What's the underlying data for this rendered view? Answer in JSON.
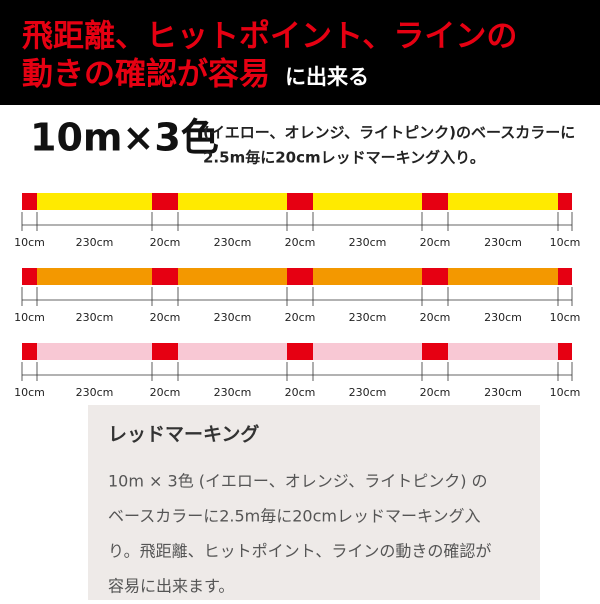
{
  "header": {
    "line1": "飛距離、ヒットポイント、ラインの",
    "line2_red": "動きの確認が容易",
    "line2_white": "に出来る"
  },
  "spec": {
    "headline": "10m×3色",
    "line1": "(イエロー、オレンジ、ライトピンク)のベースカラーに",
    "line2": "2.5m毎に20cmレッドマーキング入り。"
  },
  "diagram": {
    "marker_color": "#e60012",
    "bars": [
      {
        "color": "#ffea00"
      },
      {
        "color": "#f39800"
      },
      {
        "color": "#f8c8d4"
      }
    ],
    "segments": [
      "10cm",
      "230cm",
      "20cm",
      "230cm",
      "20cm",
      "230cm",
      "20cm",
      "230cm",
      "10cm"
    ]
  },
  "note": {
    "title": "レッドマーキング",
    "lines": [
      "10m × 3色 (イエロー、オレンジ、ライトピンク) の",
      "ベースカラーに2.5m毎に20cmレッドマーキング入",
      "り。飛距離、ヒットポイント、ラインの動きの確認が",
      "容易に出来ます。"
    ]
  }
}
